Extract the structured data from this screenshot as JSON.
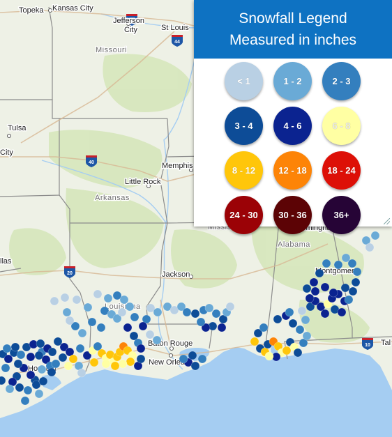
{
  "legend": {
    "title": "Snowfall Legend",
    "subtitle": "Measured in inches",
    "header_color": "#0e72c2",
    "items": [
      {
        "label": "< 1",
        "color": "#b9d0e4",
        "text_color": "#ffffff"
      },
      {
        "label": "1 - 2",
        "color": "#6aaad6",
        "text_color": "#ffffff"
      },
      {
        "label": "2 - 3",
        "color": "#347fbe",
        "text_color": "#ffffff"
      },
      {
        "label": "3 - 4",
        "color": "#0d4c97",
        "text_color": "#ffffff"
      },
      {
        "label": "4 - 6",
        "color": "#0b2390",
        "text_color": "#ffffff"
      },
      {
        "label": "6 - 8",
        "color": "#ffffa3",
        "text_color": "#e9e9e9"
      },
      {
        "label": "8 - 12",
        "color": "#ffc60a",
        "text_color": "#ffffff"
      },
      {
        "label": "12 - 18",
        "color": "#fd8407",
        "text_color": "#ffffff"
      },
      {
        "label": "18 - 24",
        "color": "#dd1007",
        "text_color": "#ffffff"
      },
      {
        "label": "24 - 30",
        "color": "#9b0206",
        "text_color": "#ffffff"
      },
      {
        "label": "30 - 36",
        "color": "#5c0305",
        "text_color": "#ffffff"
      },
      {
        "label": "36+",
        "color": "#260436",
        "text_color": "#ffffff"
      }
    ]
  },
  "map": {
    "cities": {
      "topeka": "Topeka",
      "kansas_city": "Kansas City",
      "jefferson_city_1": "Jefferson",
      "jefferson_city_2": "City",
      "st_louis": "St Louis",
      "tulsa": "Tulsa",
      "city_partial": "City",
      "little_rock": "Little Rock",
      "memphis": "Memphis",
      "birmingham": "Birmingham",
      "dallas_partial": "llas",
      "jackson": "Jackson",
      "montgomery": "Montgomery",
      "baton_rouge": "Baton Rouge",
      "new_orleans": "New Orleans",
      "houston": "Houston",
      "tallahassee_partial": "Tal"
    },
    "states": {
      "missouri": "Missouri",
      "arkansas": "Arkansas",
      "mississippi": "Mississippi",
      "alabama": "Alabama",
      "louisiana": "Louisiana"
    },
    "interstates": {
      "i70": "70",
      "i44": "44",
      "i40": "40",
      "i20": "20",
      "i10": "10"
    },
    "colors": {
      "land": "#eef1e6",
      "water": "#a5cdf2",
      "forest": "#d5e6b9",
      "state_border": "#8c8c8c",
      "interstate_shield": "#1d56a6"
    }
  }
}
